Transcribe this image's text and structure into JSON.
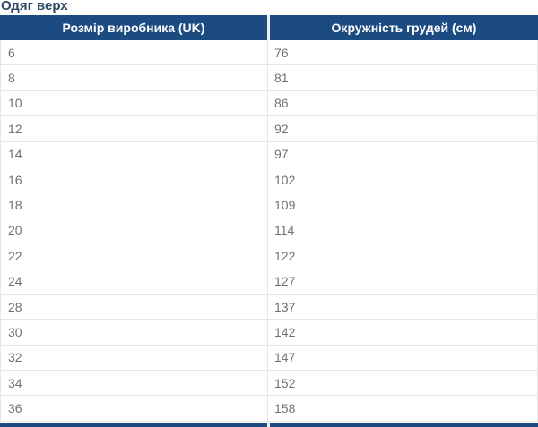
{
  "page": {
    "title": "Одяг верх"
  },
  "colors": {
    "header_bg": "#1c4b82",
    "header_text": "#ffffff",
    "title_text": "#2c4766",
    "cell_text": "#6d7175",
    "row_border": "#e4e6e8",
    "header_divider": "#eef1f3"
  },
  "table": {
    "columns": [
      {
        "label": "Розмір виробника (UK)"
      },
      {
        "label": "Окружність грудей (см)"
      }
    ],
    "rows": [
      {
        "size": "6",
        "chest": "76"
      },
      {
        "size": "8",
        "chest": "81"
      },
      {
        "size": "10",
        "chest": "86"
      },
      {
        "size": "12",
        "chest": "92"
      },
      {
        "size": "14",
        "chest": "97"
      },
      {
        "size": "16",
        "chest": "102"
      },
      {
        "size": "18",
        "chest": "109"
      },
      {
        "size": "20",
        "chest": "114"
      },
      {
        "size": "22",
        "chest": "122"
      },
      {
        "size": "24",
        "chest": "127"
      },
      {
        "size": "28",
        "chest": "137"
      },
      {
        "size": "30",
        "chest": "142"
      },
      {
        "size": "32",
        "chest": "147"
      },
      {
        "size": "34",
        "chest": "152"
      },
      {
        "size": "36",
        "chest": "158"
      }
    ]
  },
  "chart_data": {
    "type": "table",
    "title": "Одяг верх",
    "columns": [
      "Розмір виробника (UK)",
      "Окружність грудей (см)"
    ],
    "rows": [
      [
        6,
        76
      ],
      [
        8,
        81
      ],
      [
        10,
        86
      ],
      [
        12,
        92
      ],
      [
        14,
        97
      ],
      [
        16,
        102
      ],
      [
        18,
        109
      ],
      [
        20,
        114
      ],
      [
        22,
        122
      ],
      [
        24,
        127
      ],
      [
        28,
        137
      ],
      [
        30,
        142
      ],
      [
        32,
        147
      ],
      [
        34,
        152
      ],
      [
        36,
        158
      ]
    ]
  }
}
